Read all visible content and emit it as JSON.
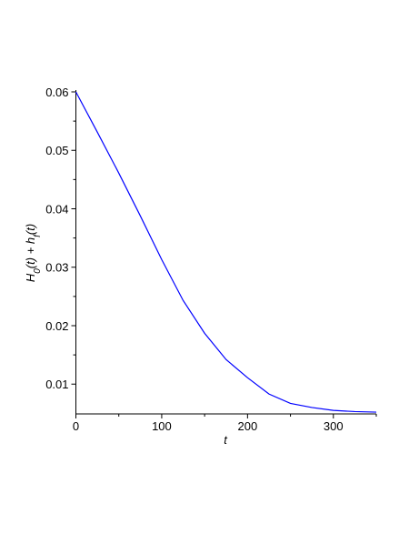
{
  "chart_data": {
    "type": "line",
    "xlabel": "t",
    "ylabel": [
      "H",
      "0",
      "(t) + h",
      "f",
      "(t)"
    ],
    "x": [
      0,
      25,
      50,
      75,
      100,
      125,
      150,
      175,
      200,
      225,
      250,
      275,
      300,
      325,
      350
    ],
    "series": [
      {
        "color": "#0000ff",
        "values": [
          0.06,
          0.0531,
          0.0461,
          0.0388,
          0.0313,
          0.0243,
          0.0187,
          0.0142,
          0.0111,
          0.0083,
          0.0067,
          0.006,
          0.0055,
          0.0053,
          0.0052
        ]
      }
    ],
    "xlim": [
      0,
      350
    ],
    "ylim": [
      0.0049,
      0.06
    ],
    "xticks": [
      0,
      100,
      200,
      300
    ],
    "xminorticks": [
      50,
      150,
      250,
      350
    ],
    "yticks": [
      0.01,
      0.02,
      0.03,
      0.04,
      0.05,
      0.06
    ],
    "yminorticks": [
      0.015,
      0.025,
      0.035,
      0.045,
      0.055
    ]
  }
}
